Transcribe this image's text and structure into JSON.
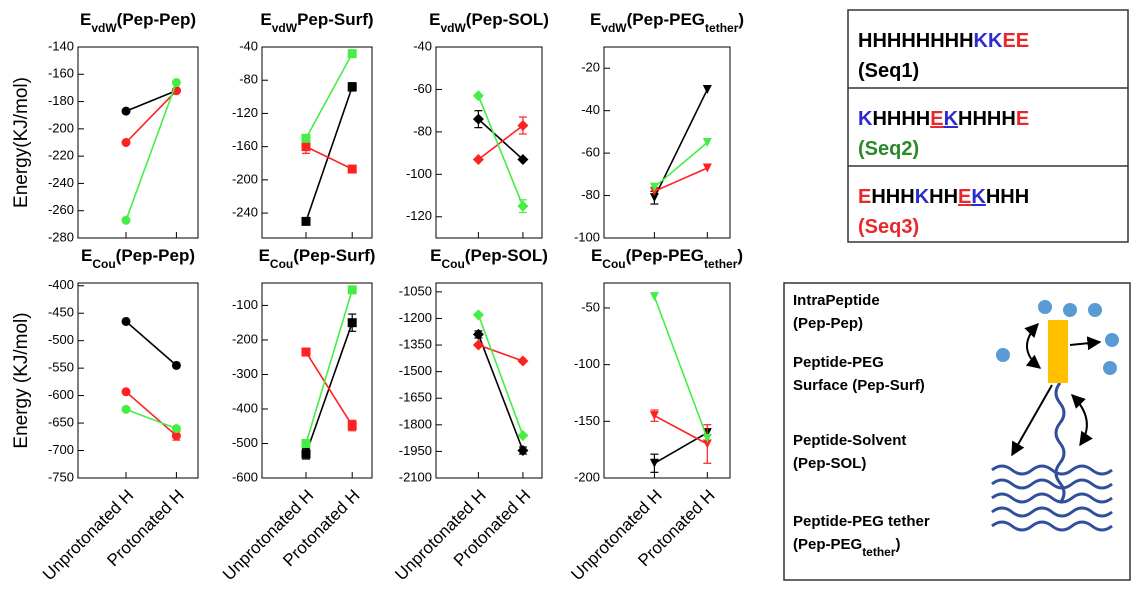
{
  "chart_data": [
    {
      "type": "line",
      "title": [
        "E",
        "vdW",
        "(Pep-Pep)"
      ],
      "ylabel": "Energy(KJ/mol)",
      "categories": [
        null,
        null
      ],
      "marker": "circle",
      "ylim": [
        -280,
        -140
      ],
      "yticks": [
        -140,
        -160,
        -180,
        -200,
        -220,
        -240,
        -260,
        -280
      ],
      "series": [
        {
          "color": "#000000",
          "values": [
            -187,
            -172
          ],
          "errors": [
            null,
            null
          ]
        },
        {
          "color": "#ff2020",
          "values": [
            -210,
            -172
          ],
          "errors": [
            null,
            null
          ]
        },
        {
          "color": "#44ee44",
          "values": [
            -267,
            -166
          ],
          "errors": [
            null,
            null
          ]
        }
      ]
    },
    {
      "type": "line",
      "title": [
        "E",
        "vdW",
        "Pep-Surf)"
      ],
      "categories": [
        null,
        null
      ],
      "marker": "square",
      "ylim": [
        -270,
        -40
      ],
      "yticks": [
        -40,
        -80,
        -120,
        -160,
        -200,
        -240
      ],
      "series": [
        {
          "color": "#000000",
          "values": [
            -250,
            -88
          ],
          "errors": [
            null,
            5
          ]
        },
        {
          "color": "#ff2020",
          "values": [
            -160,
            -187
          ],
          "errors": [
            8,
            null
          ]
        },
        {
          "color": "#44ee44",
          "values": [
            -150,
            -48
          ],
          "errors": [
            null,
            null
          ]
        }
      ]
    },
    {
      "type": "line",
      "title": [
        "E",
        "vdW",
        "(Pep-SOL)"
      ],
      "categories": [
        null,
        null
      ],
      "marker": "diamond",
      "ylim": [
        -130,
        -40
      ],
      "yticks": [
        -40,
        -60,
        -80,
        -100,
        -120
      ],
      "series": [
        {
          "color": "#000000",
          "values": [
            -74,
            -93
          ],
          "errors": [
            4,
            null
          ]
        },
        {
          "color": "#ff2020",
          "values": [
            -93,
            -77
          ],
          "errors": [
            null,
            4
          ]
        },
        {
          "color": "#44ee44",
          "values": [
            -63,
            -115
          ],
          "errors": [
            null,
            3
          ]
        }
      ]
    },
    {
      "type": "line",
      "title": [
        "E",
        "vdW",
        "(Pep-PEG",
        "tether",
        ")"
      ],
      "categories": [
        null,
        null
      ],
      "marker": "triangle-down",
      "ylim": [
        -100,
        -10
      ],
      "yticks": [
        -20,
        -40,
        -60,
        -80,
        -100
      ],
      "series": [
        {
          "color": "#000000",
          "values": [
            -81,
            -30
          ],
          "errors": [
            3,
            null
          ]
        },
        {
          "color": "#ff2020",
          "values": [
            -78,
            -67
          ],
          "errors": [
            null,
            null
          ]
        },
        {
          "color": "#44ee44",
          "values": [
            -76,
            -55
          ],
          "errors": [
            null,
            null
          ]
        }
      ]
    },
    {
      "type": "line",
      "title": [
        "E",
        "Cou",
        "(Pep-Pep)"
      ],
      "ylabel": "Energy (KJ/mol)",
      "categories": [
        "Unprotonated H",
        "Protonated H"
      ],
      "marker": "circle",
      "ylim": [
        -750,
        -395
      ],
      "yticks": [
        -400,
        -450,
        -500,
        -550,
        -600,
        -650,
        -700,
        -750
      ],
      "series": [
        {
          "color": "#000000",
          "values": [
            -465,
            -545
          ],
          "errors": [
            null,
            null
          ]
        },
        {
          "color": "#ff2020",
          "values": [
            -593,
            -673
          ],
          "errors": [
            null,
            8
          ]
        },
        {
          "color": "#44ee44",
          "values": [
            -625,
            -660
          ],
          "errors": [
            null,
            null
          ]
        }
      ]
    },
    {
      "type": "line",
      "title": [
        "E",
        "Cou",
        "(Pep-Surf)"
      ],
      "categories": [
        "Unprotonated H",
        "Protonated H"
      ],
      "marker": "square",
      "ylim": [
        -600,
        -35
      ],
      "yticks": [
        -100,
        -200,
        -300,
        -400,
        -500,
        -600
      ],
      "series": [
        {
          "color": "#000000",
          "values": [
            -530,
            -150
          ],
          "errors": [
            15,
            25
          ]
        },
        {
          "color": "#ff2020",
          "values": [
            -235,
            -448
          ],
          "errors": [
            null,
            15
          ]
        },
        {
          "color": "#44ee44",
          "values": [
            -500,
            -55
          ],
          "errors": [
            null,
            null
          ]
        }
      ]
    },
    {
      "type": "line",
      "title": [
        "E",
        "Cou",
        "(Pep-SOL)"
      ],
      "categories": [
        "Unprotonated H",
        "Protonated H"
      ],
      "marker": "diamond",
      "ylim": [
        -2100,
        -1000
      ],
      "yticks": [
        -1050,
        -1200,
        -1350,
        -1500,
        -1650,
        -1800,
        -1950,
        -2100
      ],
      "series": [
        {
          "color": "#000000",
          "values": [
            -1290,
            -1945
          ],
          "errors": [
            20,
            20
          ]
        },
        {
          "color": "#ff2020",
          "values": [
            -1350,
            -1440
          ],
          "errors": [
            null,
            null
          ]
        },
        {
          "color": "#44ee44",
          "values": [
            -1180,
            -1860
          ],
          "errors": [
            null,
            null
          ]
        }
      ]
    },
    {
      "type": "line",
      "title": [
        "E",
        "Cou",
        "(Pep-PEG",
        "tether",
        ")"
      ],
      "categories": [
        "Unprotonated H",
        "Protonated H"
      ],
      "marker": "triangle-down",
      "ylim": [
        -200,
        -28
      ],
      "yticks": [
        -50,
        -100,
        -150,
        -200
      ],
      "series": [
        {
          "color": "#000000",
          "values": [
            -187,
            -160
          ],
          "errors": [
            8,
            null
          ]
        },
        {
          "color": "#ff2020",
          "values": [
            -145,
            -170
          ],
          "errors": [
            5,
            17
          ]
        },
        {
          "color": "#44ee44",
          "values": [
            -40,
            -165
          ],
          "errors": [
            null,
            null
          ]
        }
      ]
    }
  ],
  "sequences": [
    {
      "segments": [
        {
          "text": "HHHHHHHH",
          "color": "#000000"
        },
        {
          "text": "KK",
          "color": "#2b2bd0"
        },
        {
          "text": "EE",
          "color": "#e8282a"
        }
      ],
      "label": "(Seq1)",
      "label_color": "#000000"
    },
    {
      "segments": [
        {
          "text": "K",
          "color": "#2b2bd0"
        },
        {
          "text": "HHHH",
          "color": "#000000"
        },
        {
          "text": "E",
          "color": "#e8282a",
          "underline": true
        },
        {
          "text": "K",
          "color": "#2b2bd0",
          "underline": true
        },
        {
          "text": "HHHH",
          "color": "#000000"
        },
        {
          "text": "E",
          "color": "#e8282a"
        }
      ],
      "label": "(Seq2)",
      "label_color": "#2a8a2a"
    },
    {
      "segments": [
        {
          "text": "E",
          "color": "#e8282a"
        },
        {
          "text": "HHH",
          "color": "#000000"
        },
        {
          "text": "K",
          "color": "#2b2bd0"
        },
        {
          "text": "HH",
          "color": "#000000"
        },
        {
          "text": "E",
          "color": "#e8282a",
          "underline": true
        },
        {
          "text": "K",
          "color": "#2b2bd0",
          "underline": true
        },
        {
          "text": "HHH",
          "color": "#000000"
        }
      ],
      "label": "(Seq3)",
      "label_color": "#e8282a"
    }
  ],
  "terms": [
    {
      "lines": [
        [
          "IntraPeptide"
        ],
        [
          "(Pep-Pep)"
        ]
      ]
    },
    {
      "lines": [
        [
          "Peptide-PEG"
        ],
        [
          "Surface (Pep-Surf)"
        ]
      ]
    },
    {
      "lines": [
        [
          "Peptide-Solvent"
        ],
        [
          "(Pep-SOL)"
        ]
      ]
    },
    {
      "lines": [
        [
          "Peptide-PEG tether"
        ],
        [
          "(Pep-PEG",
          "tether",
          ")"
        ]
      ]
    }
  ]
}
